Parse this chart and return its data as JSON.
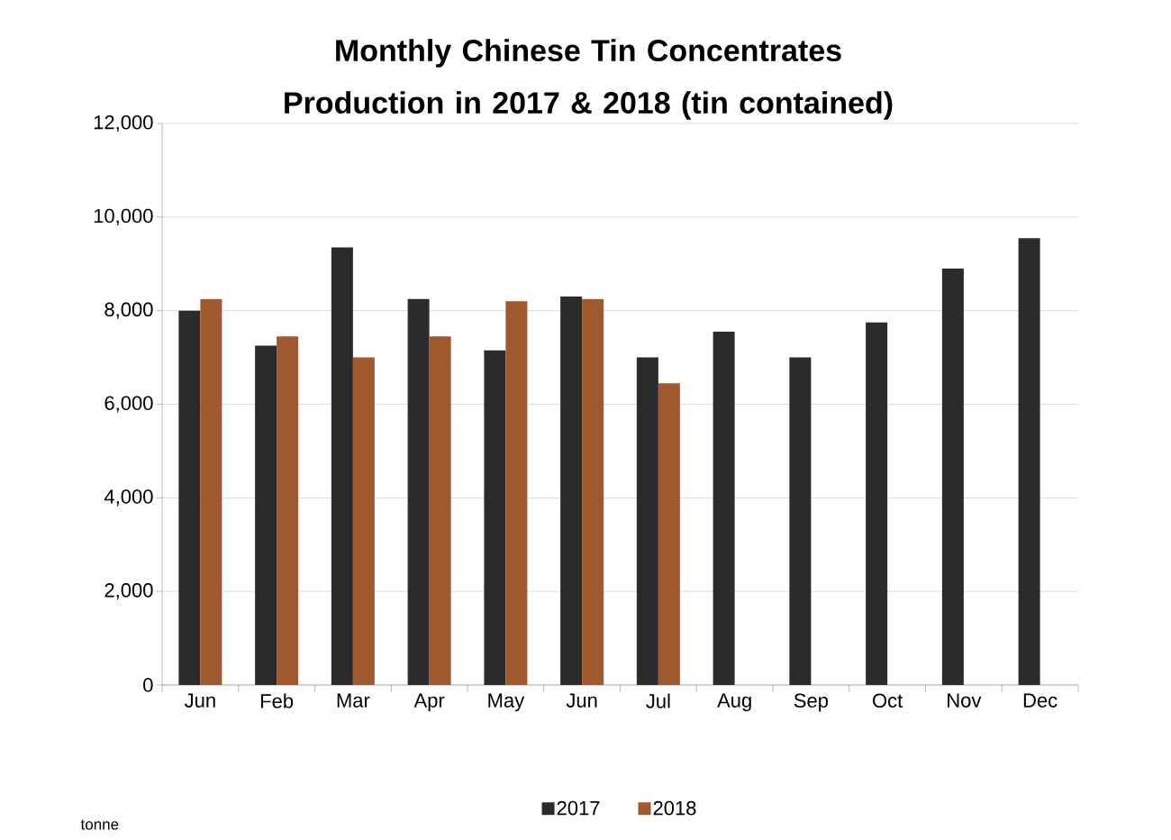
{
  "chart_data": {
    "type": "bar",
    "title": "Monthly Chinese Tin Concentrates Production in 2017 & 2018 (tin contained)",
    "categories": [
      "Jun",
      "Feb",
      "Mar",
      "Apr",
      "May",
      "Jun",
      "Jul",
      "Aug",
      "Sep",
      "Oct",
      "Nov",
      "Dec"
    ],
    "series": [
      {
        "name": "2017",
        "color": "#2b2b2b",
        "values": [
          8000,
          7250,
          9350,
          8250,
          7150,
          8300,
          7000,
          7550,
          7000,
          7750,
          8900,
          9550
        ]
      },
      {
        "name": "2018",
        "color": "#a0582f",
        "values": [
          8250,
          7450,
          7000,
          7450,
          8200,
          8250,
          6450,
          null,
          null,
          null,
          null,
          null
        ]
      }
    ],
    "ylim": [
      0,
      12000
    ],
    "yticks": [
      0,
      {
        "value": 2000,
        "label": "2,000"
      },
      {
        "value": 4000,
        "label": "4,000"
      },
      {
        "value": 6000,
        "label": "6,000"
      },
      {
        "value": 8000,
        "label": "8,000"
      },
      {
        "value": 10000,
        "label": "10,000"
      },
      {
        "value": 12000,
        "label": "12,000"
      }
    ],
    "grid": "y",
    "legend": "bottom",
    "annotations": [
      "tonne"
    ]
  }
}
